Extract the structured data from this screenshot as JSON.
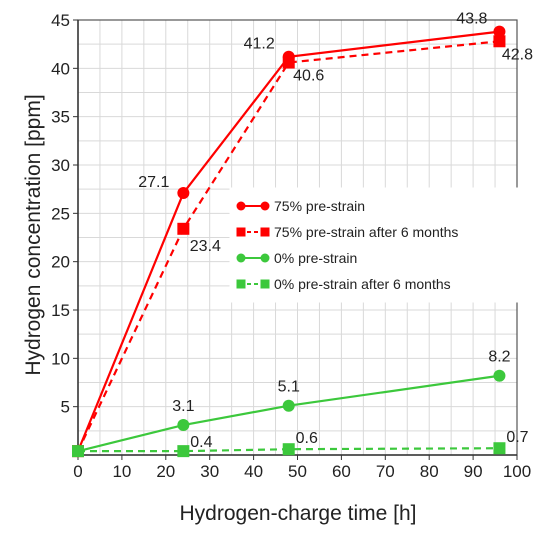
{
  "chart_data": {
    "type": "line",
    "title": "",
    "xlabel": "Hydrogen-charge time [h]",
    "ylabel": "Hydrogen concentration [ppm]",
    "xlim": [
      0,
      100
    ],
    "ylim": [
      0,
      45
    ],
    "x_ticks": [
      0,
      10,
      20,
      30,
      40,
      50,
      60,
      70,
      80,
      90,
      100
    ],
    "y_ticks": [
      5,
      10,
      15,
      20,
      25,
      30,
      35,
      40,
      45
    ],
    "grid": true,
    "legend_position": "center-right",
    "series": [
      {
        "name": "75% pre-strain",
        "x": [
          0,
          24,
          48,
          96
        ],
        "y": [
          0.4,
          27.1,
          41.2,
          43.8
        ],
        "labels": [
          "",
          "27.1",
          "41.2",
          "43.8"
        ],
        "marker": "circle",
        "dash": "solid",
        "color": "#ff0000"
      },
      {
        "name": "75% pre-strain after 6 months",
        "x": [
          0,
          24,
          48,
          96
        ],
        "y": [
          0.4,
          23.4,
          40.6,
          42.8
        ],
        "labels": [
          "",
          "23.4",
          "40.6",
          "42.8"
        ],
        "marker": "square",
        "dash": "dashed",
        "color": "#ff0000"
      },
      {
        "name": "0% pre-strain",
        "x": [
          0,
          24,
          48,
          96
        ],
        "y": [
          0.4,
          3.1,
          5.1,
          8.2
        ],
        "labels": [
          "",
          "3.1",
          "5.1",
          "8.2"
        ],
        "marker": "circle",
        "dash": "solid",
        "color": "#3cc83c"
      },
      {
        "name": "0% pre-strain after 6 months",
        "x": [
          0,
          24,
          48,
          96
        ],
        "y": [
          0.4,
          0.4,
          0.6,
          0.7
        ],
        "labels": [
          "",
          "0.4",
          "0.6",
          "0.7"
        ],
        "marker": "square",
        "dash": "dashed",
        "color": "#3cc83c"
      }
    ]
  }
}
